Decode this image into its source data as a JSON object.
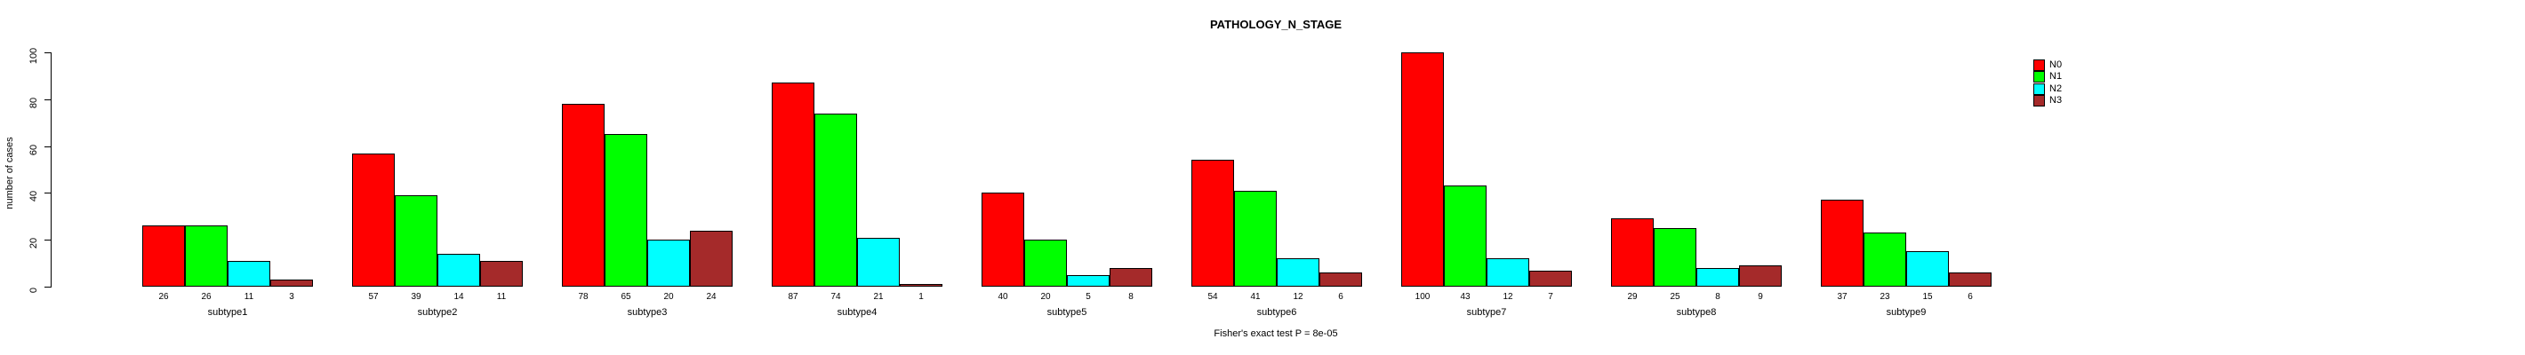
{
  "title": "PATHOLOGY_N_STAGE",
  "y_axis_label": "number of cases",
  "footnote": "Fisher's exact test P = 8e-05",
  "legend": {
    "items": [
      {
        "label": "N0",
        "color": "#FF0000"
      },
      {
        "label": "N1",
        "color": "#00FF00"
      },
      {
        "label": "N2",
        "color": "#00FFFF"
      },
      {
        "label": "N3",
        "color": "#A52A2A"
      }
    ]
  },
  "chart_data": {
    "type": "bar",
    "title": "PATHOLOGY_N_STAGE",
    "xlabel": "",
    "ylabel": "number of cases",
    "ylim": [
      0,
      100
    ],
    "yticks": [
      0,
      20,
      40,
      60,
      80,
      100
    ],
    "grid": false,
    "legend_position": "right",
    "bar_value_labels": true,
    "annotation": "Fisher's exact test P = 8e-05",
    "categories": [
      "subtype1",
      "subtype2",
      "subtype3",
      "subtype4",
      "subtype5",
      "subtype6",
      "subtype7",
      "subtype8",
      "subtype9"
    ],
    "series": [
      {
        "name": "N0",
        "color": "#FF0000",
        "values": [
          26,
          57,
          78,
          87,
          40,
          54,
          100,
          29,
          37
        ]
      },
      {
        "name": "N1",
        "color": "#00FF00",
        "values": [
          26,
          39,
          65,
          74,
          20,
          41,
          43,
          25,
          23
        ]
      },
      {
        "name": "N2",
        "color": "#00FFFF",
        "values": [
          11,
          14,
          20,
          21,
          5,
          12,
          12,
          8,
          15
        ]
      },
      {
        "name": "N3",
        "color": "#A52A2A",
        "values": [
          3,
          11,
          24,
          1,
          8,
          6,
          7,
          9,
          6
        ]
      }
    ]
  }
}
